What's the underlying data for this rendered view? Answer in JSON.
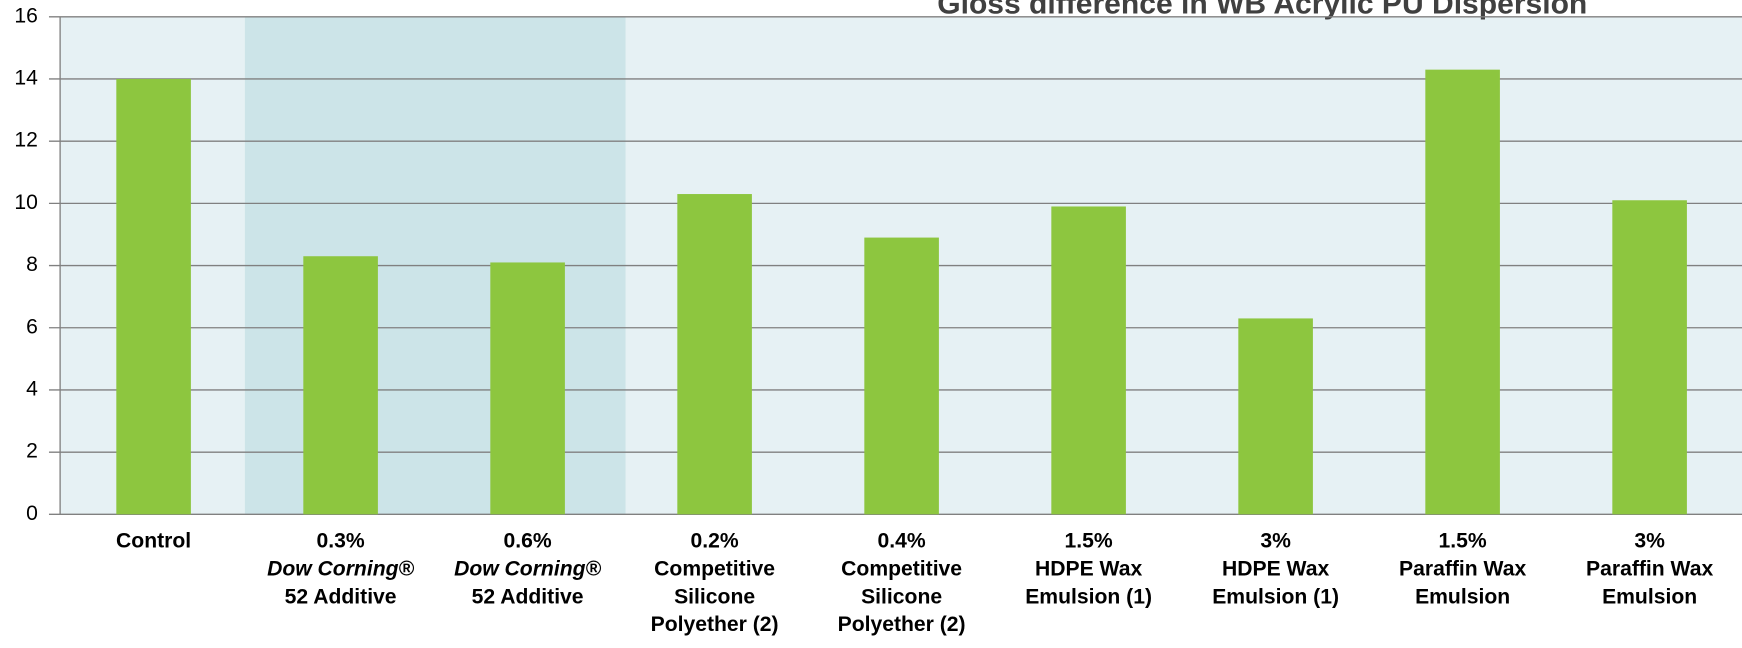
{
  "chart_data": {
    "type": "bar",
    "title": "Gloss difference in  WB Acrylic PU Dispersion",
    "categories": [
      [
        "Control"
      ],
      [
        "0.3%",
        "Dow Corning®",
        "52 Additive"
      ],
      [
        "0.6%",
        "Dow Corning®",
        "52 Additive"
      ],
      [
        "0.2%",
        "Competitive",
        "Silicone",
        "Polyether (2)"
      ],
      [
        "0.4%",
        "Competitive",
        "Silicone",
        "Polyether (2)"
      ],
      [
        "1.5%",
        "HDPE Wax",
        "Emulsion (1)"
      ],
      [
        "3%",
        "HDPE Wax",
        "Emulsion (1)"
      ],
      [
        "1.5%",
        "Paraffin Wax",
        "Emulsion"
      ],
      [
        "3%",
        "Paraffin Wax",
        "Emulsion"
      ]
    ],
    "values": [
      14,
      8.3,
      8.1,
      10.3,
      8.9,
      9.9,
      6.3,
      14.3,
      10.1
    ],
    "color": "#8dc63f",
    "ylim": [
      0,
      16
    ],
    "yticks": [
      0,
      2,
      4,
      6,
      8,
      10,
      12,
      14,
      16
    ],
    "grid": true
  }
}
